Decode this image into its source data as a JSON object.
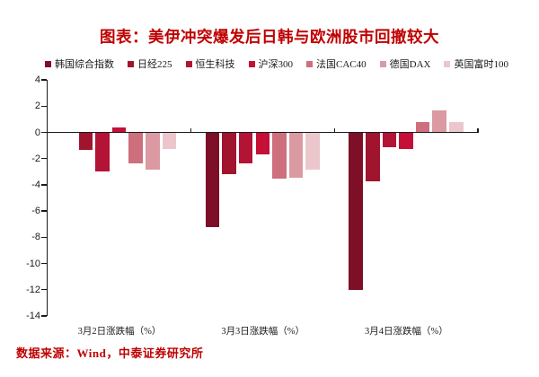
{
  "title": "图表：美伊冲突爆发后日韩与欧洲股市回撤较大",
  "source": "数据来源：Wind，中泰证券研究所",
  "colors": {
    "title_red": "#c00000",
    "source_red": "#bf0000",
    "axis": "#1a1a1a",
    "background": "#ffffff"
  },
  "chart_data": {
    "type": "bar",
    "title": "图表：美伊冲突爆发后日韩与欧洲股市回撤较大",
    "categories": [
      "3月2日涨跌幅（%）",
      "3月3日涨跌幅（%）",
      "3月4日涨跌幅（%）"
    ],
    "series": [
      {
        "name": "韩国综合指数",
        "color": "#7d1026",
        "values": [
          null,
          -7.2,
          -12.0
        ]
      },
      {
        "name": "日经225",
        "color": "#a0142e",
        "values": [
          -1.3,
          -3.1,
          -3.7
        ]
      },
      {
        "name": "恒生科技",
        "color": "#b31334",
        "values": [
          -2.9,
          -2.3,
          -1.1
        ]
      },
      {
        "name": "沪深300",
        "color": "#c50f36",
        "values": [
          0.4,
          -1.6,
          -1.2
        ]
      },
      {
        "name": "法国CAC40",
        "color": "#cd6f7c",
        "values": [
          -2.3,
          -3.5,
          0.8
        ]
      },
      {
        "name": "德国DAX",
        "color": "#db99a2",
        "values": [
          -2.8,
          -3.4,
          1.7
        ]
      },
      {
        "name": "英国富时100",
        "color": "#ebc7cc",
        "values": [
          -1.2,
          -2.8,
          0.8
        ]
      }
    ],
    "xlabel": "",
    "ylabel": "",
    "ylim": [
      -14,
      4
    ],
    "yticks": [
      4,
      2,
      0,
      -2,
      -4,
      -6,
      -8,
      -10,
      -12,
      -14
    ],
    "legend_position": "top",
    "grid": false
  }
}
